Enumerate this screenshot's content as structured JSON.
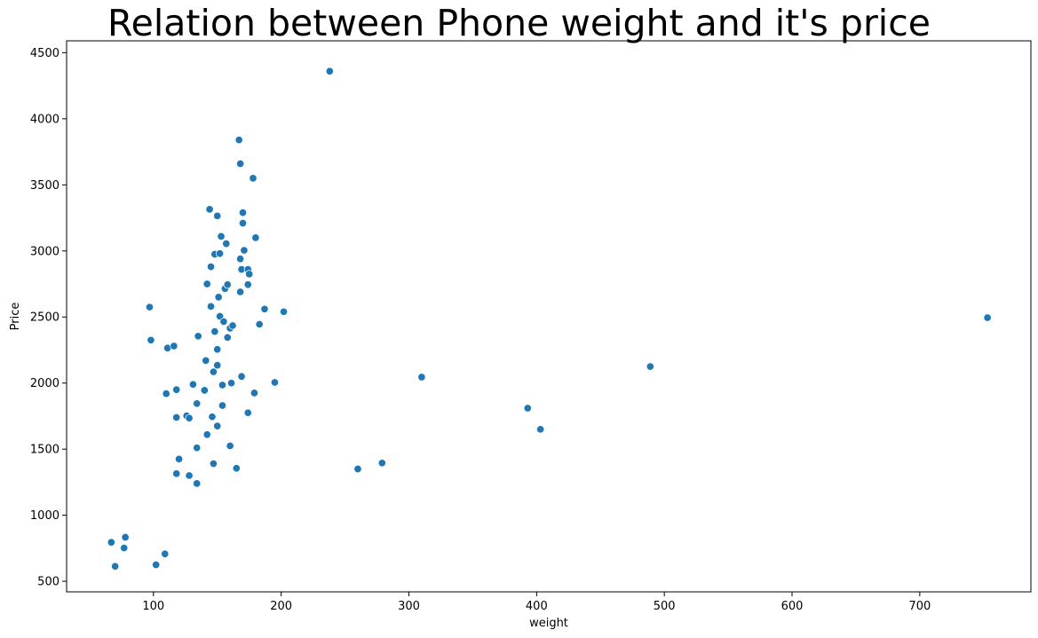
{
  "chart_data": {
    "type": "scatter",
    "title": "Relation between Phone weight and it's price",
    "xlabel": "weight",
    "ylabel": "Price",
    "xlim": [
      32,
      787
    ],
    "ylim": [
      420,
      4590
    ],
    "xticks": [
      100,
      200,
      300,
      400,
      500,
      600,
      700
    ],
    "yticks": [
      500,
      1000,
      1500,
      2000,
      2500,
      3000,
      3500,
      4000,
      4500
    ],
    "grid": false,
    "legend": "none",
    "marker_color": "#1f77b4",
    "series": [
      {
        "points": [
          [
            67,
            795
          ],
          [
            70,
            613
          ],
          [
            77,
            752
          ],
          [
            78,
            833
          ],
          [
            102,
            625
          ],
          [
            109,
            707
          ],
          [
            97,
            2575
          ],
          [
            98,
            2325
          ],
          [
            110,
            1920
          ],
          [
            111,
            2265
          ],
          [
            116,
            2280
          ],
          [
            118,
            1950
          ],
          [
            118,
            1740
          ],
          [
            118,
            1315
          ],
          [
            120,
            1425
          ],
          [
            126,
            1752
          ],
          [
            128,
            1735
          ],
          [
            128,
            1300
          ],
          [
            131,
            1990
          ],
          [
            134,
            1845
          ],
          [
            134,
            1510
          ],
          [
            135,
            2355
          ],
          [
            134,
            1240
          ],
          [
            140,
            1945
          ],
          [
            141,
            2170
          ],
          [
            142,
            1610
          ],
          [
            142,
            2750
          ],
          [
            144,
            3315
          ],
          [
            145,
            2880
          ],
          [
            145,
            2580
          ],
          [
            146,
            1745
          ],
          [
            147,
            1390
          ],
          [
            147,
            2085
          ],
          [
            148,
            2390
          ],
          [
            148,
            2975
          ],
          [
            150,
            2255
          ],
          [
            150,
            1675
          ],
          [
            150,
            2135
          ],
          [
            150,
            3265
          ],
          [
            151,
            2650
          ],
          [
            152,
            2980
          ],
          [
            152,
            2505
          ],
          [
            153,
            3110
          ],
          [
            154,
            1985
          ],
          [
            154,
            1830
          ],
          [
            155,
            2465
          ],
          [
            156,
            2715
          ],
          [
            157,
            3055
          ],
          [
            158,
            2745
          ],
          [
            158,
            2345
          ],
          [
            160,
            2415
          ],
          [
            160,
            1525
          ],
          [
            161,
            2000
          ],
          [
            162,
            2435
          ],
          [
            165,
            1355
          ],
          [
            167,
            3840
          ],
          [
            168,
            3660
          ],
          [
            168,
            2940
          ],
          [
            168,
            2690
          ],
          [
            169,
            2860
          ],
          [
            169,
            2050
          ],
          [
            170,
            3290
          ],
          [
            170,
            3210
          ],
          [
            171,
            3005
          ],
          [
            174,
            2860
          ],
          [
            174,
            2745
          ],
          [
            174,
            1775
          ],
          [
            175,
            2825
          ],
          [
            178,
            3550
          ],
          [
            179,
            1925
          ],
          [
            180,
            3100
          ],
          [
            183,
            2445
          ],
          [
            187,
            2560
          ],
          [
            195,
            2005
          ],
          [
            202,
            2540
          ],
          [
            238,
            4360
          ],
          [
            260,
            1350
          ],
          [
            279,
            1395
          ],
          [
            310,
            2045
          ],
          [
            393,
            1810
          ],
          [
            403,
            1650
          ],
          [
            489,
            2125
          ],
          [
            753,
            2495
          ]
        ]
      }
    ]
  }
}
